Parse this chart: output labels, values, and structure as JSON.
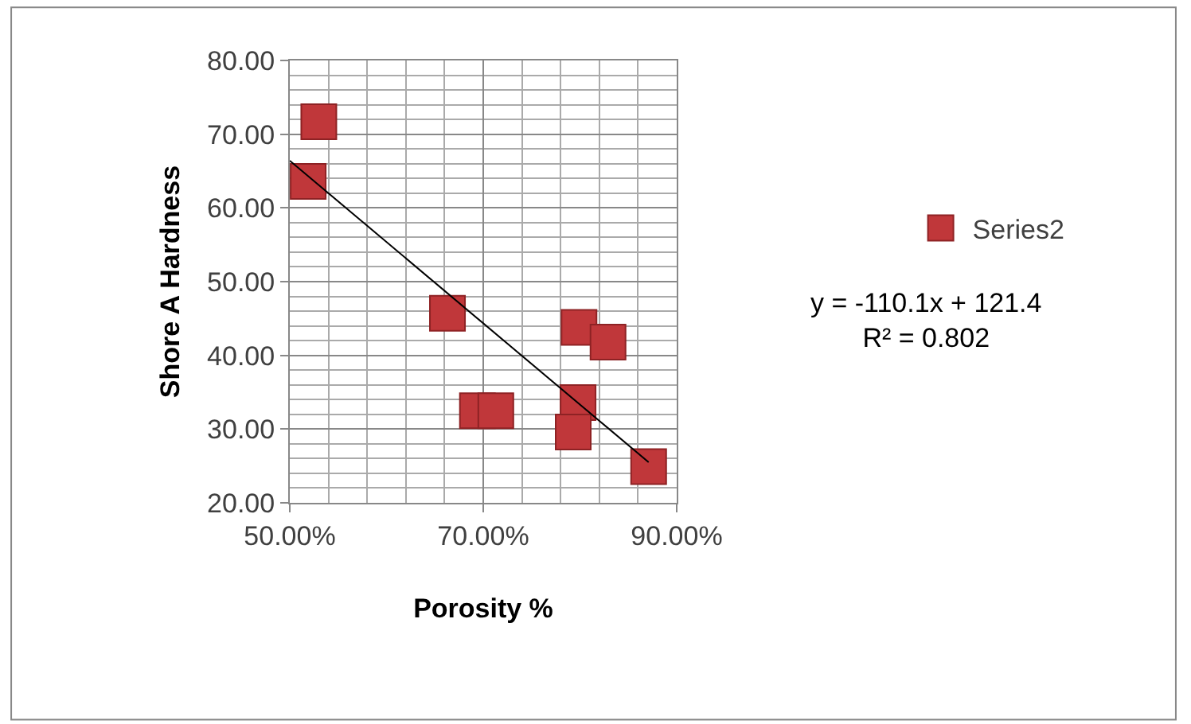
{
  "chart_data": {
    "type": "scatter",
    "xlabel": "Porosity %",
    "ylabel": "Shore A Hardness",
    "xlim": [
      0.5,
      0.9
    ],
    "ylim": [
      20,
      80
    ],
    "xticks": [
      {
        "value": 0.5,
        "label": "50.00%"
      },
      {
        "value": 0.7,
        "label": "70.00%"
      },
      {
        "value": 0.9,
        "label": "90.00%"
      }
    ],
    "yticks": [
      {
        "value": 20,
        "label": "20.00"
      },
      {
        "value": 30,
        "label": "30.00"
      },
      {
        "value": 40,
        "label": "40.00"
      },
      {
        "value": 50,
        "label": "50.00"
      },
      {
        "value": 60,
        "label": "60.00"
      },
      {
        "value": 70,
        "label": "70.00"
      },
      {
        "value": 80,
        "label": "80.00"
      }
    ],
    "grid": true,
    "legend": "right",
    "series": [
      {
        "name": "Series2",
        "color": "#c0373a",
        "marker": "square",
        "x": [
          0.53,
          0.519,
          0.663,
          0.694,
          0.713,
          0.799,
          0.829,
          0.798,
          0.793,
          0.871
        ],
        "values": [
          71.7,
          63.6,
          45.7,
          32.5,
          32.5,
          43.8,
          41.8,
          33.6,
          29.6,
          24.9
        ]
      },
      {
        "type": "line",
        "color": "#000000",
        "x": [
          0.5,
          0.871
        ],
        "marker": "none",
        "values": [
          66.4,
          25.5
        ]
      }
    ],
    "annotations": [
      "y = -110.1x + 121.4\nR² = 0.802"
    ]
  }
}
